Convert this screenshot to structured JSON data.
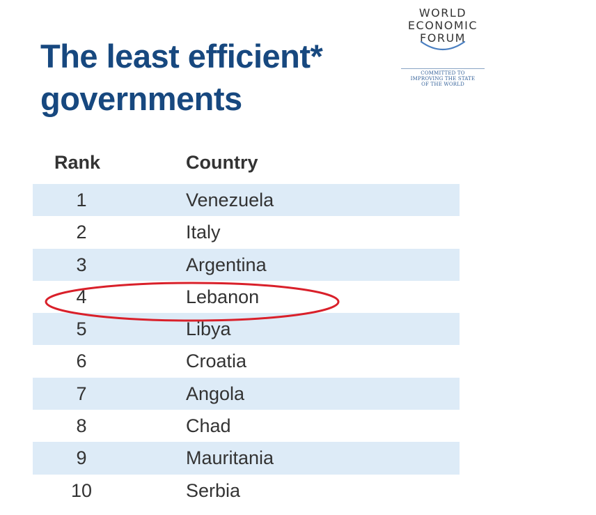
{
  "title": {
    "line1": "The least efficient*",
    "line2": "governments"
  },
  "logo": {
    "name_lines": [
      "WORLD",
      "ECONOMIC",
      "FORUM"
    ],
    "tagline_lines": [
      "COMMITTED TO",
      "IMPROVING THE STATE",
      "OF THE WORLD"
    ]
  },
  "colors": {
    "title": "#17487f",
    "shaded_row": "#ddebf7",
    "highlight_ellipse": "#d9202a",
    "text": "#333333"
  },
  "chart_data": {
    "type": "table",
    "title": "The least efficient* governments",
    "columns": [
      "Rank",
      "Country"
    ],
    "rows": [
      {
        "rank": "1",
        "country": "Venezuela"
      },
      {
        "rank": "2",
        "country": "Italy"
      },
      {
        "rank": "3",
        "country": "Argentina"
      },
      {
        "rank": "4",
        "country": "Lebanon"
      },
      {
        "rank": "5",
        "country": "Libya"
      },
      {
        "rank": "6",
        "country": "Croatia"
      },
      {
        "rank": "7",
        "country": "Angola"
      },
      {
        "rank": "8",
        "country": "Chad"
      },
      {
        "rank": "9",
        "country": "Mauritania"
      },
      {
        "rank": "10",
        "country": "Serbia"
      }
    ],
    "highlighted_rank": "4",
    "highlight_shape": "ellipse"
  }
}
